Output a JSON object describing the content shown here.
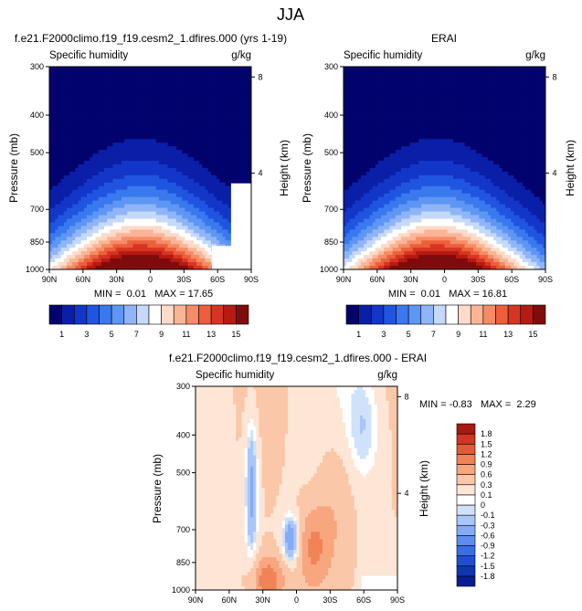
{
  "figure": {
    "title": "JJA"
  },
  "chart_data": [
    {
      "type": "heatmap",
      "title": "f.e21.F2000climo.f19_f19.cesm2_1.dfires.000 (yrs 1-19)",
      "subtitle_left": "Specific humidity",
      "subtitle_right": "g/kg",
      "ylabel": "Pressure (mb)",
      "ylabel_right": "Height (km)",
      "x_ticks": [
        "90N",
        "60N",
        "30N",
        "0",
        "30S",
        "60S",
        "90S"
      ],
      "y_ticks": [
        "300",
        "400",
        "500",
        "700",
        "850",
        "1000"
      ],
      "y_right_ticks": [
        "8",
        "4"
      ],
      "xlim": [
        90,
        -90
      ],
      "ylim": [
        1000,
        300
      ],
      "y_scale": "log",
      "stats": "MIN =  0.01   MAX = 17.65",
      "colorbar_labels": [
        "1",
        "3",
        "5",
        "7",
        "9",
        "11",
        "13",
        "15"
      ],
      "colorbar_orientation": "horizontal",
      "levels": [
        1,
        2,
        3,
        4,
        5,
        6,
        7,
        8,
        9,
        10,
        11,
        12,
        13,
        14,
        15
      ],
      "colors": [
        "#03036e",
        "#0a1fa8",
        "#1336c8",
        "#1f55e0",
        "#3a78ee",
        "#5e96f4",
        "#8fb5f8",
        "#c5d9fb",
        "#ffffff",
        "#fddac9",
        "#fbb596",
        "#f68c65",
        "#ec5f3d",
        "#d73521",
        "#b51a13",
        "#7f0c0c"
      ],
      "min": 0.01,
      "max": 17.65,
      "missing_region_note": "Antarctic topography masked"
    },
    {
      "type": "heatmap",
      "title": "ERAI",
      "subtitle_left": "Specific humidity",
      "subtitle_right": "g/kg",
      "ylabel": "Pressure (mb)",
      "ylabel_right": "Height (km)",
      "x_ticks": [
        "90N",
        "60N",
        "30N",
        "0",
        "30S",
        "60S",
        "90S"
      ],
      "y_ticks": [
        "300",
        "400",
        "500",
        "700",
        "850",
        "1000"
      ],
      "y_right_ticks": [
        "8",
        "4"
      ],
      "xlim": [
        90,
        -90
      ],
      "ylim": [
        1000,
        300
      ],
      "y_scale": "log",
      "stats": "MIN =  0.01   MAX = 16.81",
      "colorbar_labels": [
        "1",
        "3",
        "5",
        "7",
        "9",
        "11",
        "13",
        "15"
      ],
      "colorbar_orientation": "horizontal",
      "levels": [
        1,
        2,
        3,
        4,
        5,
        6,
        7,
        8,
        9,
        10,
        11,
        12,
        13,
        14,
        15
      ],
      "colors": [
        "#03036e",
        "#0a1fa8",
        "#1336c8",
        "#1f55e0",
        "#3a78ee",
        "#5e96f4",
        "#8fb5f8",
        "#c5d9fb",
        "#ffffff",
        "#fddac9",
        "#fbb596",
        "#f68c65",
        "#ec5f3d",
        "#d73521",
        "#b51a13",
        "#7f0c0c"
      ],
      "min": 0.01,
      "max": 16.81
    },
    {
      "type": "heatmap",
      "title": "f.e21.F2000climo.f19_f19.cesm2_1.dfires.000 - ERAI",
      "subtitle_left": "Specific humidity",
      "subtitle_right": "g/kg",
      "ylabel": "Pressure (mb)",
      "ylabel_right": "Height (km)",
      "x_ticks": [
        "90N",
        "60N",
        "30N",
        "0",
        "30S",
        "60S",
        "90S"
      ],
      "y_ticks": [
        "300",
        "400",
        "500",
        "700",
        "850",
        "1000"
      ],
      "y_right_ticks": [
        "8",
        "4"
      ],
      "xlim": [
        90,
        -90
      ],
      "ylim": [
        1000,
        300
      ],
      "y_scale": "log",
      "stats": "MIN = -0.83   MAX =  2.29",
      "colorbar_labels": [
        "1.8",
        "1.5",
        "1.2",
        "0.9",
        "0.6",
        "0.3",
        "0.1",
        "0",
        "-0.1",
        "-0.3",
        "-0.6",
        "-0.9",
        "-1.2",
        "-1.5",
        "-1.8"
      ],
      "colorbar_orientation": "vertical",
      "levels": [
        -1.8,
        -1.5,
        -1.2,
        -0.9,
        -0.6,
        -0.3,
        -0.1,
        0,
        0.1,
        0.3,
        0.6,
        0.9,
        1.2,
        1.5,
        1.8
      ],
      "colors": [
        "#081d8f",
        "#0f35b0",
        "#1f4fd0",
        "#3a6ee5",
        "#5c8df0",
        "#86abf5",
        "#aac6f8",
        "#d0e2fb",
        "#ffffff",
        "#fde6d6",
        "#fbc7a9",
        "#f7a67e",
        "#f08358",
        "#e45a36",
        "#cf3520",
        "#a61a10"
      ],
      "min": -0.83,
      "max": 2.29
    }
  ]
}
